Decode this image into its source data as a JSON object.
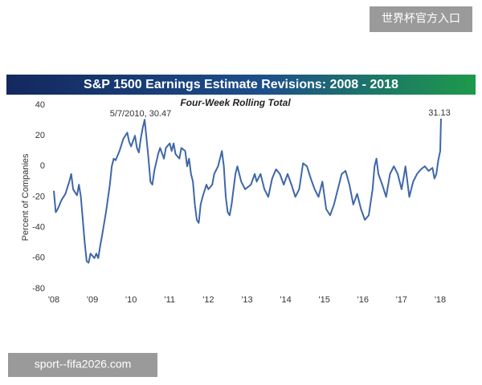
{
  "chart_data": {
    "type": "line",
    "title": "S&P 1500 Earnings Estimate Revisions: 2008 - 2018",
    "subtitle": "Four-Week Rolling Total",
    "y_label": "Percent of Companies",
    "annotations": [
      "5/7/2010, 30.47",
      "31.13"
    ],
    "xlim": [
      2008,
      2018.1
    ],
    "xticks": [
      {
        "value": 2008,
        "label": "'08"
      },
      {
        "value": 2009,
        "label": "'09"
      },
      {
        "value": 2010,
        "label": "'10"
      },
      {
        "value": 2011,
        "label": "'11"
      },
      {
        "value": 2012,
        "label": "'12"
      },
      {
        "value": 2013,
        "label": "'13"
      },
      {
        "value": 2014,
        "label": "'14"
      },
      {
        "value": 2015,
        "label": "'15"
      },
      {
        "value": 2016,
        "label": "'16"
      },
      {
        "value": 2017,
        "label": "'17"
      },
      {
        "value": 2018,
        "label": "'18"
      }
    ],
    "ylim": [
      -80,
      40
    ],
    "yticks": [
      -80,
      -60,
      -40,
      -20,
      0,
      20,
      40
    ],
    "grid": false,
    "color": "#3f67a8",
    "x": [
      2008.0,
      2008.05,
      2008.1,
      2008.2,
      2008.3,
      2008.4,
      2008.45,
      2008.5,
      2008.6,
      2008.65,
      2008.7,
      2008.75,
      2008.8,
      2008.85,
      2008.9,
      2008.95,
      2009.05,
      2009.1,
      2009.15,
      2009.2,
      2009.25,
      2009.35,
      2009.45,
      2009.5,
      2009.55,
      2009.6,
      2009.7,
      2009.8,
      2009.9,
      2009.95,
      2010.0,
      2010.1,
      2010.15,
      2010.2,
      2010.25,
      2010.3,
      2010.35,
      2010.4,
      2010.45,
      2010.5,
      2010.55,
      2010.6,
      2010.7,
      2010.75,
      2010.85,
      2010.9,
      2011.0,
      2011.05,
      2011.1,
      2011.15,
      2011.25,
      2011.3,
      2011.4,
      2011.45,
      2011.5,
      2011.55,
      2011.6,
      2011.65,
      2011.7,
      2011.75,
      2011.8,
      2011.85,
      2011.95,
      2012.0,
      2012.1,
      2012.15,
      2012.25,
      2012.3,
      2012.35,
      2012.4,
      2012.45,
      2012.5,
      2012.55,
      2012.6,
      2012.7,
      2012.75,
      2012.85,
      2012.95,
      2013.1,
      2013.2,
      2013.25,
      2013.35,
      2013.45,
      2013.55,
      2013.65,
      2013.75,
      2013.85,
      2013.95,
      2014.05,
      2014.15,
      2014.25,
      2014.35,
      2014.45,
      2014.55,
      2014.65,
      2014.75,
      2014.85,
      2014.95,
      2015.05,
      2015.15,
      2015.25,
      2015.35,
      2015.45,
      2015.55,
      2015.65,
      2015.75,
      2015.85,
      2015.95,
      2016.05,
      2016.15,
      2016.25,
      2016.3,
      2016.35,
      2016.4,
      2016.5,
      2016.6,
      2016.7,
      2016.8,
      2016.9,
      2017.0,
      2017.05,
      2017.1,
      2017.2,
      2017.3,
      2017.4,
      2017.5,
      2017.6,
      2017.7,
      2017.8,
      2017.85,
      2017.9,
      2017.95,
      2018.0,
      2018.02
    ],
    "values": [
      -16,
      -30,
      -28,
      -22,
      -18,
      -10,
      -5,
      -15,
      -19,
      -12,
      -20,
      -35,
      -50,
      -62,
      -63,
      -57,
      -60,
      -57,
      -60,
      -52,
      -45,
      -30,
      -12,
      0,
      5,
      4,
      10,
      18,
      22,
      16,
      13,
      20,
      12,
      9,
      18,
      25,
      30.47,
      18,
      5,
      -10,
      -12,
      -3,
      8,
      12,
      5,
      12,
      15,
      10,
      15,
      8,
      5,
      12,
      10,
      0,
      5,
      -5,
      -10,
      -25,
      -35,
      -37,
      -25,
      -20,
      -12,
      -15,
      -12,
      -5,
      0,
      5,
      10,
      0,
      -20,
      -30,
      -32,
      -25,
      -5,
      0,
      -10,
      -15,
      -12,
      -5,
      -10,
      -5,
      -15,
      -20,
      -8,
      -2,
      -5,
      -12,
      -5,
      -12,
      -20,
      -15,
      2,
      0,
      -8,
      -15,
      -20,
      -10,
      -28,
      -32,
      -25,
      -15,
      -5,
      -3,
      -12,
      -25,
      -18,
      -28,
      -35,
      -32,
      -15,
      0,
      5,
      -5,
      -12,
      -20,
      -5,
      0,
      -5,
      -15,
      -8,
      0,
      -20,
      -10,
      -5,
      -2,
      0,
      -3,
      -1,
      -8,
      -5,
      4,
      10,
      31.13
    ]
  },
  "watermarks": [
    "世界杯官方入口",
    "sport--fifa2026.com"
  ]
}
